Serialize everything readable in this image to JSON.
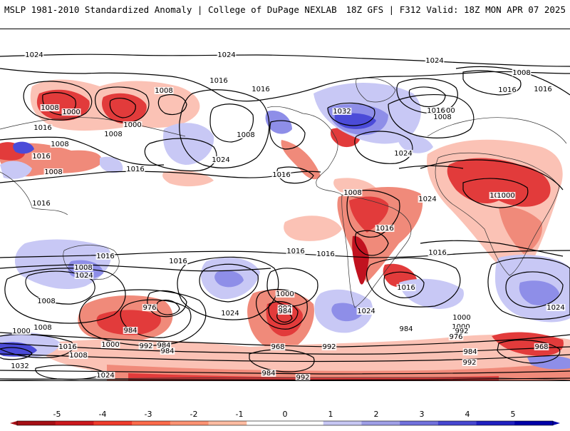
{
  "header": {
    "title_left": "MSLP 1981-2010 Standardized Anomaly | College of DuPage NEXLAB",
    "title_right": "18Z GFS | F312 Valid: 18Z MON APR 07 2025"
  },
  "map": {
    "colors": {
      "neg_strong": "#c1121f",
      "neg_mid": "#e23b3b",
      "neg_light": "#f08a7a",
      "neg_faint": "#fbc2b5",
      "pos_faint": "#c8c8f5",
      "pos_mid": "#8e8ee8",
      "pos_strong": "#4b4bd8",
      "contour": "#000000",
      "coast": "#333333"
    },
    "isobar_labels": [
      "1024",
      "1024",
      "1016",
      "1008",
      "1008",
      "1016",
      "1000",
      "1008",
      "1000",
      "1016",
      "1008",
      "1008",
      "1016",
      "1008",
      "1016",
      "1024",
      "1032",
      "1024",
      "1024",
      "1016",
      "1000",
      "1008",
      "1016",
      "1016",
      "1008",
      "1016",
      "1016",
      "1008",
      "1000",
      "1008",
      "1016",
      "1024",
      "1016",
      "1016",
      "1016",
      "1016",
      "1008",
      "1024",
      "1008",
      "1016",
      "1008",
      "1008",
      "1016",
      "1024",
      "1000",
      "992",
      "976",
      "984",
      "984",
      "1000",
      "992",
      "984",
      "1008",
      "1024",
      "1000",
      "984",
      "968",
      "992",
      "984",
      "1000",
      "992",
      "976",
      "984",
      "992",
      "968",
      "1016",
      "1032",
      "1024",
      "1008",
      "1000",
      "1024",
      "984",
      "992"
    ]
  },
  "colorbar": {
    "ticks": [
      "-5",
      "-4",
      "-3",
      "-2",
      "-1",
      "0",
      "1",
      "2",
      "3",
      "4",
      "5"
    ],
    "colors": [
      "#a50f15",
      "#cb181d",
      "#ef3b2c",
      "#fb6a4a",
      "#fc9272",
      "#fcbba1",
      "#ffffff",
      "#ffffff",
      "#c6c6f2",
      "#9e9ee6",
      "#7070dc",
      "#4646d0",
      "#2020c0",
      "#0000a8"
    ]
  }
}
